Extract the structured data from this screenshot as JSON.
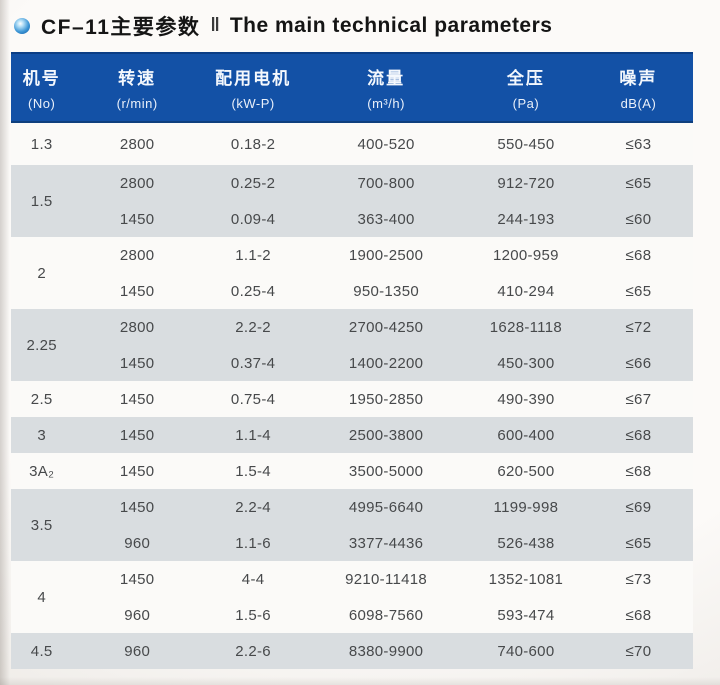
{
  "title": {
    "zh": "CF–11主要参数",
    "separator": "‖",
    "en": "The main technical parameters"
  },
  "colors": {
    "header_bg": "#1351a6",
    "header_text": "#ffffff",
    "row_gray": "#d9dde0",
    "row_white": "#fbfaf8",
    "cell_text": "#47494b",
    "bullet_blue": "#0a55a0"
  },
  "table": {
    "columns": [
      {
        "key": "no",
        "zh": "机号",
        "unit": "(No)"
      },
      {
        "key": "speed",
        "zh": "转速",
        "unit": "(r/min)"
      },
      {
        "key": "motor",
        "zh": "配用电机",
        "unit": "(kW-P)"
      },
      {
        "key": "flow",
        "zh": "流量",
        "unit": "(m³/h)"
      },
      {
        "key": "pressure",
        "zh": "全压",
        "unit": "(Pa)"
      },
      {
        "key": "noise",
        "zh": "噪声",
        "unit": "dB(A)"
      }
    ],
    "groups": [
      {
        "no": "1.3",
        "shade": "white",
        "rows": [
          [
            "2800",
            "0.18-2",
            "400-520",
            "550-450",
            "≤63"
          ]
        ]
      },
      {
        "no": "1.5",
        "shade": "gray",
        "rows": [
          [
            "2800",
            "0.25-2",
            "700-800",
            "912-720",
            "≤65"
          ],
          [
            "1450",
            "0.09-4",
            "363-400",
            "244-193",
            "≤60"
          ]
        ]
      },
      {
        "no": "2",
        "shade": "white",
        "rows": [
          [
            "2800",
            "1.1-2",
            "1900-2500",
            "1200-959",
            "≤68"
          ],
          [
            "1450",
            "0.25-4",
            "950-1350",
            "410-294",
            "≤65"
          ]
        ]
      },
      {
        "no": "2.25",
        "shade": "gray",
        "rows": [
          [
            "2800",
            "2.2-2",
            "2700-4250",
            "1628-1118",
            "≤72"
          ],
          [
            "1450",
            "0.37-4",
            "1400-2200",
            "450-300",
            "≤66"
          ]
        ]
      },
      {
        "no": "2.5",
        "shade": "white",
        "rows": [
          [
            "1450",
            "0.75-4",
            "1950-2850",
            "490-390",
            "≤67"
          ]
        ]
      },
      {
        "no": "3",
        "shade": "gray",
        "rows": [
          [
            "1450",
            "1.1-4",
            "2500-3800",
            "600-400",
            "≤68"
          ]
        ]
      },
      {
        "no": "3A₂",
        "shade": "white",
        "rows": [
          [
            "1450",
            "1.5-4",
            "3500-5000",
            "620-500",
            "≤68"
          ]
        ]
      },
      {
        "no": "3.5",
        "shade": "gray",
        "rows": [
          [
            "1450",
            "2.2-4",
            "4995-6640",
            "1199-998",
            "≤69"
          ],
          [
            "960",
            "1.1-6",
            "3377-4436",
            "526-438",
            "≤65"
          ]
        ]
      },
      {
        "no": "4",
        "shade": "white",
        "rows": [
          [
            "1450",
            "4-4",
            "9210-11418",
            "1352-1081",
            "≤73"
          ],
          [
            "960",
            "1.5-6",
            "6098-7560",
            "593-474",
            "≤68"
          ]
        ]
      },
      {
        "no": "4.5",
        "shade": "gray",
        "rows": [
          [
            "960",
            "2.2-6",
            "8380-9900",
            "740-600",
            "≤70"
          ]
        ]
      }
    ]
  }
}
